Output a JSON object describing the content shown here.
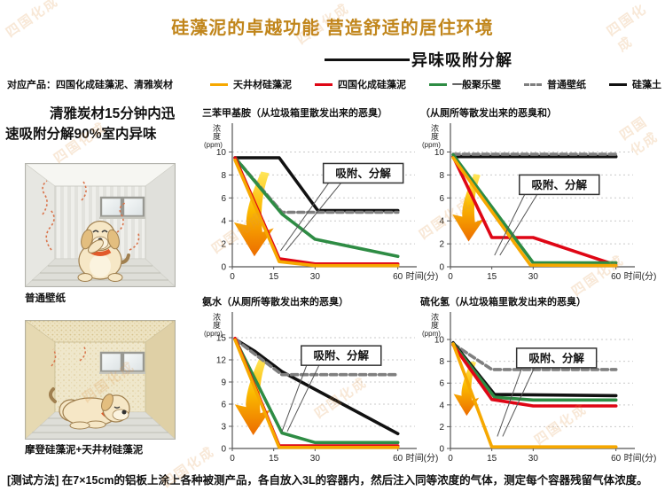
{
  "header": {
    "title": "硅藻泥的卓越功能 营造舒适的居住环境",
    "subtitle": "异味吸附分解"
  },
  "legend": {
    "prefix": "对应产品：四国化成硅藻泥、清雅炭材",
    "items": [
      {
        "label": "天井材硅藻泥",
        "color": "#F6A800",
        "dash": "solid"
      },
      {
        "label": "四国化成硅藻泥",
        "color": "#DF0615",
        "dash": "solid"
      },
      {
        "label": "一般聚乐壁",
        "color": "#2E8C44",
        "dash": "solid"
      },
      {
        "label": "普通壁纸",
        "color": "#7F7F7F",
        "dash": "dashed"
      },
      {
        "label": "硅藻土",
        "color": "#111111",
        "dash": "solid"
      }
    ]
  },
  "left_panel": {
    "headline_line1": "清雅炭材15分钟内迅",
    "headline_line2": "速吸附分解90%室内异味",
    "room1_caption": "普通壁纸",
    "room2_caption": "摩登硅藻泥+天井材硅藻泥"
  },
  "footer": {
    "note": "[测试方法] 在7×15cm的铝板上涂上各种被测产品，各自放入3L的容器内，然后注入同等浓度的气体，测定每个容器残留气体浓度。"
  },
  "watermark": "四国化成",
  "chart_data": [
    {
      "type": "line",
      "title": "三苯甲基胺（从垃圾箱里散发出来的恶臭）",
      "ylabel": "浓度",
      "yunit": "(ppm)",
      "xlabel": "时间(分)",
      "ylim": [
        0,
        12.2
      ],
      "yticks": [
        10,
        8,
        6,
        4,
        2,
        0
      ],
      "xticks": [
        0,
        15,
        30,
        60
      ],
      "xmax": 63,
      "callout": {
        "label": "吸附、分解",
        "box_x": 33,
        "box_y": 9.0,
        "target_x": 17.5,
        "target_y": 1.4
      },
      "arrow": {
        "x": 3.5,
        "top": 8.3,
        "bottom": 0.9
      },
      "series": [
        {
          "name": "硅藻土",
          "color": "#111111",
          "dash": false,
          "points": [
            [
              1,
              9.5
            ],
            [
              17,
              9.5
            ],
            [
              31,
              4.9
            ],
            [
              60,
              4.9
            ]
          ]
        },
        {
          "name": "普通壁纸",
          "color": "#7F7F7F",
          "dash": true,
          "points": [
            [
              1,
              9.5
            ],
            [
              18,
              4.75
            ],
            [
              60,
              4.75
            ]
          ]
        },
        {
          "name": "一般聚乐壁",
          "color": "#2E8C44",
          "dash": false,
          "points": [
            [
              1,
              9.5
            ],
            [
              18,
              4.6
            ],
            [
              30,
              2.4
            ],
            [
              60,
              0.9
            ]
          ]
        },
        {
          "name": "四国化成硅藻泥",
          "color": "#DF0615",
          "dash": false,
          "points": [
            [
              1,
              9.5
            ],
            [
              17,
              0.7
            ],
            [
              30,
              0.25
            ],
            [
              60,
              0.25
            ]
          ]
        },
        {
          "name": "天井材硅藻泥",
          "color": "#F6A800",
          "dash": false,
          "points": [
            [
              1,
              9.3
            ],
            [
              17,
              0.45
            ],
            [
              30,
              0.1
            ],
            [
              60,
              0.1
            ]
          ]
        }
      ]
    },
    {
      "type": "line",
      "title": "（从厕所等散发出来的恶臭和）",
      "ylabel": "浓度",
      "yunit": "(ppm)",
      "xlabel": "时间(分)",
      "ylim": [
        0,
        12.2
      ],
      "yticks": [
        10,
        8,
        6,
        4,
        2,
        0
      ],
      "xticks": [
        0,
        15,
        30,
        60
      ],
      "xmax": 63,
      "callout": {
        "label": "吸附、分解",
        "box_x": 25,
        "box_y": 8.0,
        "target_x": 16,
        "target_y": 1.0
      },
      "arrow": {
        "x": 3,
        "top": 8.1,
        "bottom": 2.2
      },
      "series": [
        {
          "name": "硅藻土",
          "color": "#111111",
          "dash": false,
          "points": [
            [
              1,
              9.6
            ],
            [
              60,
              9.6
            ]
          ]
        },
        {
          "name": "普通壁纸",
          "color": "#7F7F7F",
          "dash": true,
          "points": [
            [
              1,
              9.8
            ],
            [
              60,
              9.8
            ]
          ]
        },
        {
          "name": "四国化成硅藻泥",
          "color": "#DF0615",
          "dash": false,
          "points": [
            [
              1,
              9.6
            ],
            [
              15,
              2.55
            ],
            [
              30,
              2.55
            ],
            [
              60,
              0.15
            ]
          ]
        },
        {
          "name": "一般聚乐壁",
          "color": "#2E8C44",
          "dash": false,
          "points": [
            [
              1,
              9.75
            ],
            [
              30,
              0.35
            ],
            [
              60,
              0.35
            ]
          ]
        },
        {
          "name": "天井材硅藻泥",
          "color": "#F6A800",
          "dash": false,
          "points": [
            [
              1,
              9.5
            ],
            [
              29,
              0.15
            ],
            [
              60,
              0.1
            ]
          ]
        }
      ]
    },
    {
      "type": "line",
      "title": "氨水（从厕所等散发出来的恶臭）",
      "ylabel": "浓度",
      "yunit": "(ppm)",
      "xlabel": "时间(分)",
      "ylim": [
        0,
        18
      ],
      "yticks": [
        15,
        12,
        9,
        6,
        3,
        0
      ],
      "xticks": [
        0,
        15,
        30,
        60
      ],
      "xmax": 63,
      "callout": {
        "label": "吸附、分解",
        "box_x": 25,
        "box_y": 13.9,
        "target_x": 18,
        "target_y": 2.3
      },
      "arrow": {
        "x": 3.5,
        "top": 12.2,
        "bottom": 1.8
      },
      "series": [
        {
          "name": "硅藻土",
          "color": "#111111",
          "dash": false,
          "points": [
            [
              1,
              14.8
            ],
            [
              8,
              13.2
            ],
            [
              18,
              10.4
            ],
            [
              60,
              2.0
            ]
          ]
        },
        {
          "name": "普通壁纸",
          "color": "#7F7F7F",
          "dash": true,
          "points": [
            [
              1,
              14.8
            ],
            [
              18,
              10.0
            ],
            [
              60,
              10.0
            ]
          ]
        },
        {
          "name": "一般聚乐壁",
          "color": "#2E8C44",
          "dash": false,
          "points": [
            [
              1,
              14.8
            ],
            [
              18,
              2.1
            ],
            [
              30,
              0.8
            ],
            [
              60,
              0.8
            ]
          ]
        },
        {
          "name": "四国化成硅藻泥",
          "color": "#DF0615",
          "dash": false,
          "points": [
            [
              1,
              14.9
            ],
            [
              17,
              0.35
            ],
            [
              60,
              0.35
            ]
          ]
        },
        {
          "name": "天井材硅藻泥",
          "color": "#F6A800",
          "dash": false,
          "points": [
            [
              1,
              14.7
            ],
            [
              17,
              0.15
            ],
            [
              60,
              0.15
            ]
          ]
        }
      ]
    },
    {
      "type": "line",
      "title": "硫化氢（从垃圾箱里散发出来的恶臭）",
      "ylabel": "浓度",
      "yunit": "(ppm)",
      "xlabel": "时间(分)",
      "ylim": [
        0,
        12.2
      ],
      "yticks": [
        10,
        8,
        6,
        4,
        2,
        0
      ],
      "xticks": [
        0,
        15,
        30,
        60
      ],
      "xmax": 63,
      "callout": {
        "label": "吸附、分解",
        "box_x": 24,
        "box_y": 9.2,
        "target_x": 17,
        "target_y": 1.1
      },
      "arrow": {
        "x": 3,
        "top": 8.0,
        "bottom": 3.0
      },
      "series": [
        {
          "name": "普通壁纸",
          "color": "#7F7F7F",
          "dash": true,
          "points": [
            [
              1,
              9.6
            ],
            [
              15,
              7.25
            ],
            [
              60,
              7.25
            ]
          ]
        },
        {
          "name": "硅藻土",
          "color": "#111111",
          "dash": false,
          "points": [
            [
              1,
              9.7
            ],
            [
              16,
              4.95
            ],
            [
              60,
              4.85
            ]
          ]
        },
        {
          "name": "一般聚乐壁",
          "color": "#2E8C44",
          "dash": false,
          "points": [
            [
              1,
              9.6
            ],
            [
              16,
              4.7
            ],
            [
              30,
              4.45
            ],
            [
              60,
              4.45
            ]
          ]
        },
        {
          "name": "四国化成硅藻泥",
          "color": "#DF0615",
          "dash": false,
          "points": [
            [
              1,
              9.5
            ],
            [
              15,
              4.5
            ],
            [
              30,
              3.9
            ],
            [
              60,
              3.9
            ]
          ]
        },
        {
          "name": "天井材硅藻泥",
          "color": "#F6A800",
          "dash": false,
          "points": [
            [
              1,
              9.6
            ],
            [
              15,
              0.15
            ],
            [
              60,
              0.15
            ]
          ]
        }
      ]
    }
  ]
}
